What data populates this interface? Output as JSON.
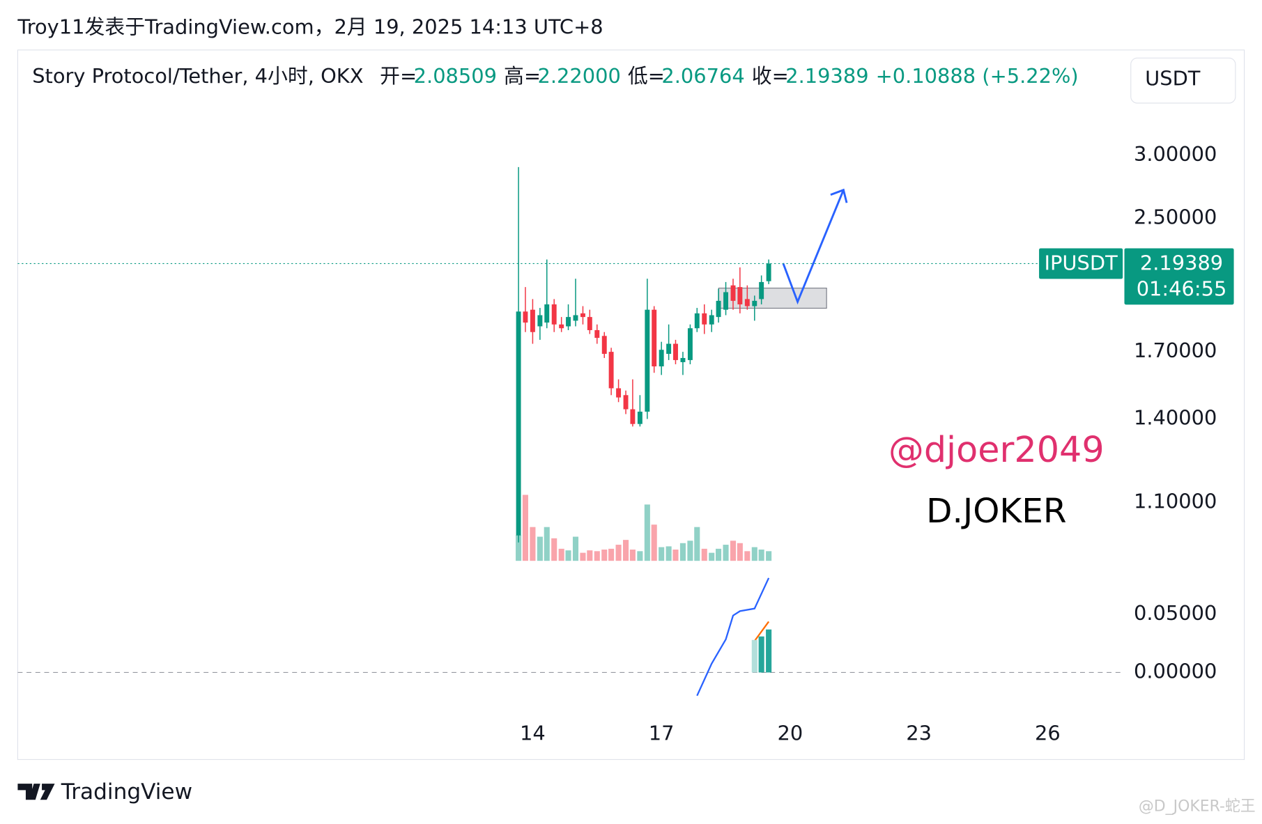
{
  "header": "Troy11发表于TradingView.com，2月 19, 2025 14:13 UTC+8",
  "legend": {
    "symbol": "Story Protocol/Tether, 4小时, OKX",
    "open_label": "开=",
    "open": "2.08509",
    "high_label": "高=",
    "high": "2.22000",
    "low_label": "低=",
    "low": "2.06764",
    "close_label": "收=",
    "close": "2.19389",
    "change": "+0.10888 (+5.22%)"
  },
  "currency_button": "USDT",
  "ticker_label": "IPUSDT",
  "countdown": "01:46:55",
  "watermarks": [
    "@djoer2049",
    "D.JOKER"
  ],
  "footer": "TradingView",
  "corner_watermark": "@D_JOKER-蛇王",
  "chart_data": {
    "type": "candlestick",
    "log": true,
    "up_color": "#089981",
    "down_color": "#f23645",
    "x": [
      13.67,
      13.83,
      14,
      14.17,
      14.33,
      14.5,
      14.67,
      14.83,
      15,
      15.17,
      15.33,
      15.5,
      15.67,
      15.83,
      16,
      16.17,
      16.33,
      16.5,
      16.67,
      16.83,
      17,
      17.17,
      17.33,
      17.5,
      17.67,
      17.83,
      18,
      18.17,
      18.33,
      18.5,
      18.67,
      18.83,
      19,
      19.17,
      19.33,
      19.5
    ],
    "open": [
      1.0,
      1.91,
      1.92,
      1.83,
      1.85,
      1.95,
      1.84,
      1.83,
      1.86,
      1.9,
      1.88,
      1.81,
      1.78,
      1.7,
      1.53,
      1.5,
      1.44,
      1.38,
      1.43,
      1.92,
      1.63,
      1.69,
      1.74,
      1.65,
      1.66,
      1.82,
      1.9,
      1.84,
      1.88,
      1.92,
      2.06,
      2.05,
      1.98,
      1.94,
      1.98,
      2.08509
    ],
    "high": [
      2.9,
      2.05,
      1.98,
      1.93,
      2.22,
      1.98,
      1.88,
      1.95,
      2.1,
      1.94,
      1.92,
      1.84,
      1.8,
      1.72,
      1.57,
      1.52,
      1.57,
      1.5,
      2.1,
      1.94,
      1.75,
      1.84,
      1.76,
      1.7,
      1.84,
      1.93,
      1.95,
      1.92,
      2.04,
      2.08,
      2.1,
      2.17,
      2.06,
      2.0,
      2.12,
      2.22
    ],
    "low": [
      0.98,
      1.8,
      1.74,
      1.76,
      1.82,
      1.8,
      1.8,
      1.81,
      1.83,
      1.84,
      1.79,
      1.74,
      1.67,
      1.5,
      1.47,
      1.42,
      1.37,
      1.37,
      1.4,
      1.6,
      1.59,
      1.66,
      1.64,
      1.59,
      1.64,
      1.8,
      1.79,
      1.8,
      1.85,
      1.89,
      1.92,
      1.9,
      1.92,
      1.86,
      1.95,
      2.06764
    ],
    "close": [
      1.91,
      1.85,
      1.8,
      1.89,
      1.95,
      1.84,
      1.82,
      1.88,
      1.89,
      1.88,
      1.81,
      1.77,
      1.69,
      1.53,
      1.49,
      1.44,
      1.38,
      1.43,
      1.92,
      1.63,
      1.71,
      1.74,
      1.66,
      1.67,
      1.82,
      1.9,
      1.84,
      1.89,
      1.97,
      2.02,
      1.97,
      1.95,
      1.94,
      1.97,
      2.08,
      2.19389
    ],
    "volume": [
      32,
      82,
      42,
      30,
      42,
      28,
      15,
      13,
      30,
      10,
      13,
      12,
      14,
      15,
      20,
      26,
      14,
      12,
      70,
      45,
      17,
      18,
      14,
      22,
      25,
      42,
      15,
      10,
      15,
      20,
      25,
      22,
      12,
      17,
      14,
      12
    ],
    "xlim": [
      2,
      27.75
    ],
    "xticks": [
      14,
      17,
      20,
      23,
      26
    ],
    "ylim": [
      0.9227,
      3.315
    ],
    "yticks": [
      {
        "value": 3,
        "label": "3.00000"
      },
      {
        "value": 2.5,
        "label": "2.50000"
      },
      {
        "value": 1.7,
        "label": "1.70000"
      },
      {
        "value": 1.4,
        "label": "1.40000"
      },
      {
        "value": 1.1,
        "label": "1.10000"
      }
    ],
    "indicator": {
      "ylim": [
        -0.041,
        0.094
      ],
      "yticks": [
        {
          "value": 0.05,
          "label": "0.05000"
        },
        {
          "value": 0,
          "label": "0.00000"
        }
      ],
      "series": [
        {
          "kind": "line",
          "color": "#2962ff",
          "x": [
            17.83,
            18.17,
            18.5,
            18.67,
            18.83,
            19.17,
            19.5
          ],
          "values": [
            -0.02,
            0.0076,
            0.0285,
            0.049,
            0.0528,
            0.055,
            0.0813
          ]
        },
        {
          "kind": "line",
          "color": "#ff6d00",
          "x": [
            19.17,
            19.5
          ],
          "values": [
            0.0271,
            0.0438
          ]
        },
        {
          "kind": "histogram",
          "colors": [
            "#b2dfdb",
            "#26a69a",
            "#26a69a"
          ],
          "x": [
            19.17,
            19.33,
            19.5
          ],
          "values": [
            0.028,
            0.031,
            0.037
          ]
        }
      ]
    }
  }
}
